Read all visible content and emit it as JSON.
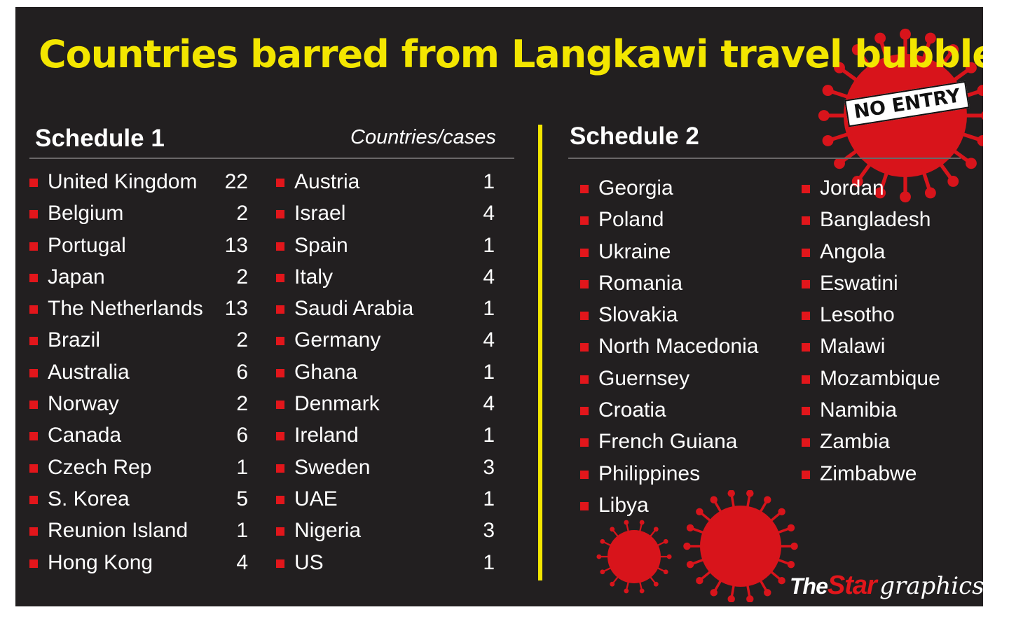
{
  "title": "Countries barred from Langkawi travel bubble",
  "stamp": "NO ENTRY",
  "schedule1": {
    "heading": "Schedule 1",
    "subheading": "Countries/cases",
    "col1": [
      {
        "country": "United Kingdom",
        "cases": "22"
      },
      {
        "country": "Belgium",
        "cases": "2"
      },
      {
        "country": "Portugal",
        "cases": "13"
      },
      {
        "country": "Japan",
        "cases": "2"
      },
      {
        "country": "The Netherlands",
        "cases": "13"
      },
      {
        "country": "Brazil",
        "cases": "2"
      },
      {
        "country": "Australia",
        "cases": "6"
      },
      {
        "country": "Norway",
        "cases": "2"
      },
      {
        "country": "Canada",
        "cases": "6"
      },
      {
        "country": "Czech Rep",
        "cases": "1"
      },
      {
        "country": "S. Korea",
        "cases": "5"
      },
      {
        "country": "Reunion Island",
        "cases": "1"
      },
      {
        "country": "Hong Kong",
        "cases": "4"
      }
    ],
    "col2": [
      {
        "country": "Austria",
        "cases": "1"
      },
      {
        "country": "Israel",
        "cases": "4"
      },
      {
        "country": "Spain",
        "cases": "1"
      },
      {
        "country": "Italy",
        "cases": "4"
      },
      {
        "country": "Saudi Arabia",
        "cases": "1"
      },
      {
        "country": "Germany",
        "cases": "4"
      },
      {
        "country": "Ghana",
        "cases": "1"
      },
      {
        "country": "Denmark",
        "cases": "4"
      },
      {
        "country": "Ireland",
        "cases": "1"
      },
      {
        "country": "Sweden",
        "cases": "3"
      },
      {
        "country": "UAE",
        "cases": "1"
      },
      {
        "country": "Nigeria",
        "cases": "3"
      },
      {
        "country": "US",
        "cases": "1"
      }
    ]
  },
  "schedule2": {
    "heading": "Schedule 2",
    "col1": [
      "Georgia",
      "Poland",
      "Ukraine",
      "Romania",
      "Slovakia",
      "North Macedonia",
      "Guernsey",
      "Croatia",
      "French Guiana",
      "Philippines",
      "Libya"
    ],
    "col2": [
      "Jordan",
      "Bangladesh",
      "Angola",
      "Eswatini",
      "Lesotho",
      "Malawi",
      "Mozambique",
      "Namibia",
      "Zambia",
      "Zimbabwe"
    ]
  },
  "credit": {
    "the": "The",
    "star": "Star",
    "graphics": "graphics"
  },
  "colors": {
    "background": "#221f20",
    "title": "#f3e600",
    "bullet": "#e2161b",
    "text": "#ffffff",
    "virus": "#d8141b"
  },
  "icons": [
    "virus-icon",
    "bullet-square-icon"
  ]
}
